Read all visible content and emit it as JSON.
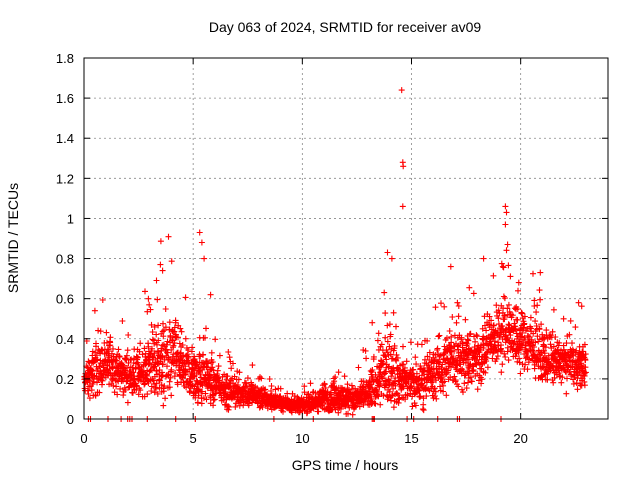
{
  "chart_data": {
    "type": "scatter",
    "title": "Day 063 of 2024, SRMTID for receiver av09",
    "xlabel": "GPS time / hours",
    "ylabel": "SRMTID / TECUs",
    "xlim": [
      0,
      24
    ],
    "ylim": [
      0,
      1.8
    ],
    "grid": true,
    "marker": "+",
    "color": "#ff0000",
    "x_ticks": [
      0,
      5,
      10,
      15,
      20
    ],
    "x_tick_labels": [
      "0",
      "5",
      "10",
      "15",
      "20"
    ],
    "y_ticks": [
      0,
      0.2,
      0.4,
      0.6,
      0.8,
      1.0,
      1.2,
      1.4,
      1.6,
      1.8
    ],
    "y_tick_labels": [
      "0",
      "0.2",
      "0.4",
      "0.6",
      "0.8",
      "1",
      "1.2",
      "1.4",
      "1.6",
      "1.8"
    ],
    "series": [
      {
        "name": "SRMTID",
        "envelope_hours": [
          0.0,
          0.5,
          1.0,
          1.5,
          2.0,
          2.5,
          3.0,
          3.5,
          4.0,
          4.5,
          5.0,
          5.5,
          6.0,
          6.5,
          7.0,
          7.5,
          8.0,
          8.5,
          9.0,
          9.5,
          10.0,
          10.5,
          11.0,
          11.5,
          12.0,
          12.5,
          13.0,
          13.5,
          14.0,
          14.5,
          15.0,
          15.5,
          16.0,
          16.5,
          17.0,
          17.5,
          18.0,
          18.5,
          19.0,
          19.5,
          20.0,
          20.5,
          21.0,
          21.5,
          22.0,
          22.5,
          23.0
        ],
        "envelope_median": [
          0.18,
          0.25,
          0.28,
          0.25,
          0.22,
          0.22,
          0.28,
          0.3,
          0.3,
          0.28,
          0.22,
          0.22,
          0.17,
          0.14,
          0.13,
          0.12,
          0.11,
          0.09,
          0.08,
          0.07,
          0.07,
          0.08,
          0.1,
          0.11,
          0.1,
          0.1,
          0.12,
          0.22,
          0.25,
          0.2,
          0.18,
          0.18,
          0.22,
          0.28,
          0.3,
          0.3,
          0.3,
          0.38,
          0.42,
          0.45,
          0.4,
          0.35,
          0.32,
          0.3,
          0.28,
          0.27,
          0.28
        ],
        "envelope_spread": [
          0.06,
          0.12,
          0.12,
          0.1,
          0.1,
          0.1,
          0.14,
          0.18,
          0.18,
          0.14,
          0.12,
          0.12,
          0.08,
          0.07,
          0.06,
          0.06,
          0.05,
          0.04,
          0.03,
          0.03,
          0.03,
          0.05,
          0.06,
          0.07,
          0.06,
          0.06,
          0.08,
          0.14,
          0.18,
          0.1,
          0.1,
          0.1,
          0.12,
          0.14,
          0.14,
          0.12,
          0.13,
          0.14,
          0.14,
          0.14,
          0.14,
          0.13,
          0.12,
          0.11,
          0.1,
          0.1,
          0.1
        ],
        "peaks": [
          [
            0.5,
            0.54
          ],
          [
            3.5,
            0.77
          ],
          [
            3.6,
            0.74
          ],
          [
            5.3,
            0.93
          ],
          [
            5.4,
            0.88
          ],
          [
            5.5,
            0.8
          ],
          [
            5.8,
            0.62
          ],
          [
            14.55,
            1.64
          ],
          [
            14.6,
            1.28
          ],
          [
            14.62,
            1.26
          ],
          [
            14.6,
            1.06
          ],
          [
            13.9,
            0.83
          ],
          [
            14.1,
            0.8
          ],
          [
            16.8,
            0.76
          ],
          [
            19.3,
            1.06
          ],
          [
            19.35,
            1.03
          ],
          [
            19.3,
            0.97
          ],
          [
            19.4,
            0.87
          ],
          [
            18.3,
            0.8
          ],
          [
            20.9,
            0.73
          ],
          [
            2.95,
            0.6
          ],
          [
            4.2,
            0.48
          ],
          [
            13.2,
            0.48
          ],
          [
            17.1,
            0.58
          ]
        ],
        "zeros_hours": [
          0.2,
          0.3,
          1.1,
          1.7,
          2.0,
          2.1,
          2.2,
          2.9,
          4.2,
          5.1,
          8.7,
          10.5,
          13.2,
          13.25,
          13.3,
          14.8,
          15.1,
          16.2,
          17.1,
          17.2,
          19.1
        ]
      }
    ]
  }
}
